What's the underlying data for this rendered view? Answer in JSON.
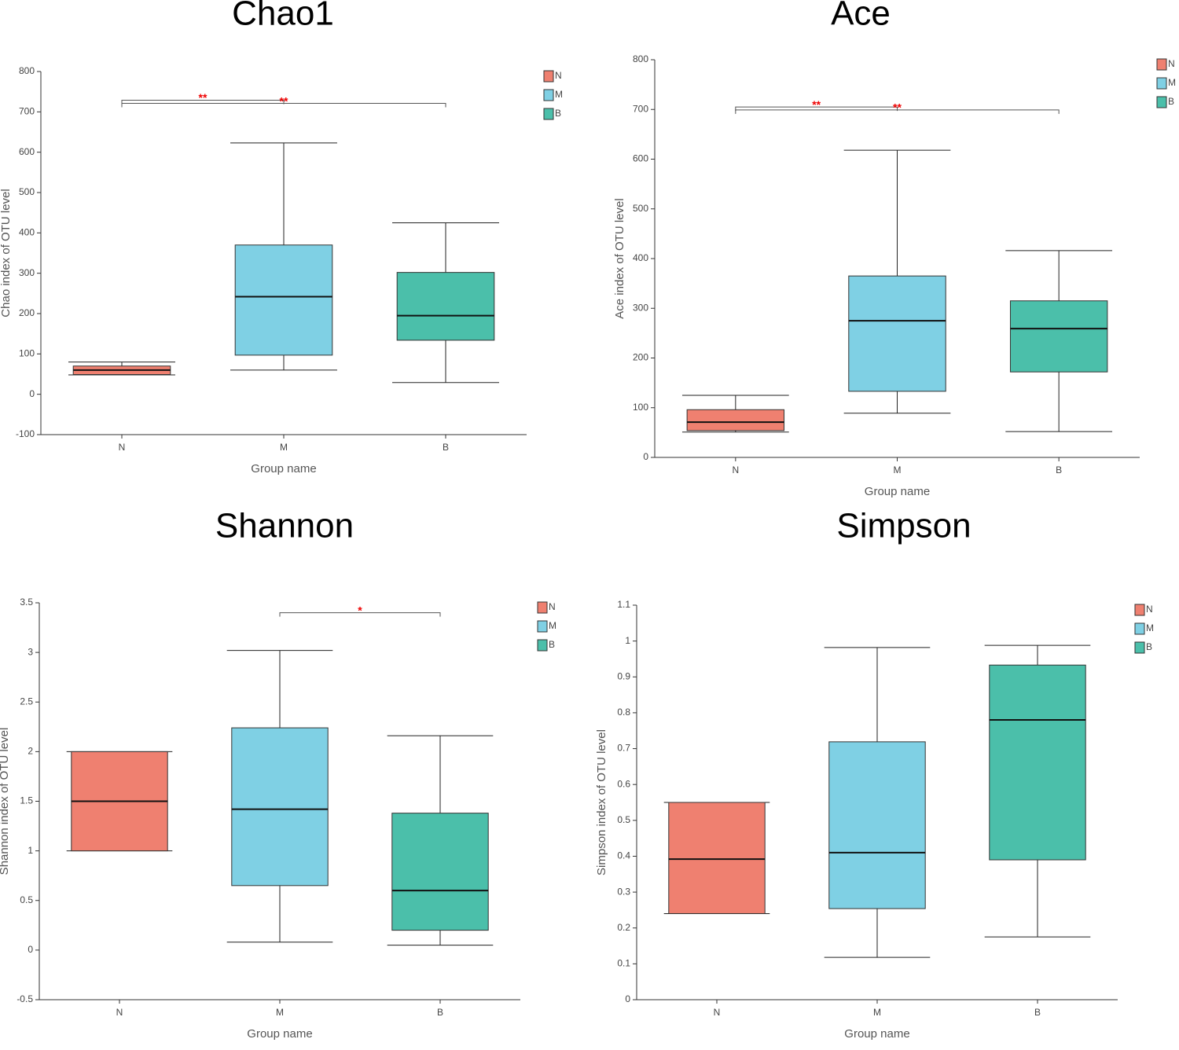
{
  "chart_data": [
    {
      "type": "box",
      "title": "Chao1",
      "xlabel": "Group name",
      "ylabel": "Chao index of OTU level",
      "categories": [
        "N",
        "M",
        "B"
      ],
      "colors": [
        "#ef8070",
        "#7fd0e4",
        "#4bbfaa"
      ],
      "legend": "top-right",
      "boxes": [
        {
          "min": 48,
          "q1": 49,
          "median": 60,
          "q3": 70,
          "max": 80
        },
        {
          "min": 60,
          "q1": 97,
          "median": 242,
          "q3": 370,
          "max": 623
        },
        {
          "min": 29,
          "q1": 134,
          "median": 195,
          "q3": 302,
          "max": 425
        }
      ],
      "brackets": [
        {
          "from": "N",
          "to": "M",
          "label": "**",
          "y": 729
        },
        {
          "from": "N",
          "to": "B",
          "label": "**",
          "y": 721
        }
      ],
      "ylim": [
        -100,
        800
      ],
      "yticks": [
        -100,
        0,
        100,
        200,
        300,
        400,
        500,
        600,
        700,
        800
      ]
    },
    {
      "type": "box",
      "title": "Ace",
      "xlabel": "Group name",
      "ylabel": "Ace index of OTU level",
      "categories": [
        "N",
        "M",
        "B"
      ],
      "colors": [
        "#ef8070",
        "#7fd0e4",
        "#4bbfaa"
      ],
      "legend": "top-right",
      "boxes": [
        {
          "min": 51,
          "q1": 54,
          "median": 71,
          "q3": 96,
          "max": 125
        },
        {
          "min": 89,
          "q1": 133,
          "median": 275,
          "q3": 365,
          "max": 618
        },
        {
          "min": 52,
          "q1": 172,
          "median": 259,
          "q3": 315,
          "max": 416
        }
      ],
      "brackets": [
        {
          "from": "N",
          "to": "M",
          "label": "**",
          "y": 705
        },
        {
          "from": "N",
          "to": "B",
          "label": "**",
          "y": 699
        }
      ],
      "ylim": [
        0,
        800
      ],
      "yticks": [
        0,
        100,
        200,
        300,
        400,
        500,
        600,
        700,
        800
      ]
    },
    {
      "type": "box",
      "title": "Shannon",
      "xlabel": "Group name",
      "ylabel": "Shannon index of OTU level",
      "categories": [
        "N",
        "M",
        "B"
      ],
      "colors": [
        "#ef8070",
        "#7fd0e4",
        "#4bbfaa"
      ],
      "legend": "top-right",
      "boxes": [
        {
          "min": 1,
          "q1": 1,
          "median": 1.5,
          "q3": 2,
          "max": 2
        },
        {
          "min": 0.08,
          "q1": 0.65,
          "median": 1.42,
          "q3": 2.24,
          "max": 3.02
        },
        {
          "min": 0.05,
          "q1": 0.2,
          "median": 0.6,
          "q3": 1.38,
          "max": 2.16
        }
      ],
      "brackets": [
        {
          "from": "M",
          "to": "B",
          "label": "*",
          "y": 3.4
        }
      ],
      "ylim": [
        -0.5,
        3.5
      ],
      "yticks": [
        -0.5,
        0,
        0.5,
        1,
        1.5,
        2,
        2.5,
        3,
        3.5
      ]
    },
    {
      "type": "box",
      "title": "Simpson",
      "xlabel": "Group name",
      "ylabel": "Simpson index of OTU level",
      "categories": [
        "N",
        "M",
        "B"
      ],
      "colors": [
        "#ef8070",
        "#7fd0e4",
        "#4bbfaa"
      ],
      "legend": "top-right",
      "boxes": [
        {
          "min": 0.24,
          "q1": 0.24,
          "median": 0.392,
          "q3": 0.55,
          "max": 0.55
        },
        {
          "min": 0.118,
          "q1": 0.254,
          "median": 0.41,
          "q3": 0.719,
          "max": 0.982
        },
        {
          "min": 0.175,
          "q1": 0.39,
          "median": 0.78,
          "q3": 0.933,
          "max": 0.988
        }
      ],
      "brackets": [],
      "ylim": [
        0,
        1.1
      ],
      "yticks": [
        0,
        0.1,
        0.2,
        0.3,
        0.4,
        0.5,
        0.6,
        0.7,
        0.8,
        0.9,
        1,
        1.1
      ]
    }
  ]
}
